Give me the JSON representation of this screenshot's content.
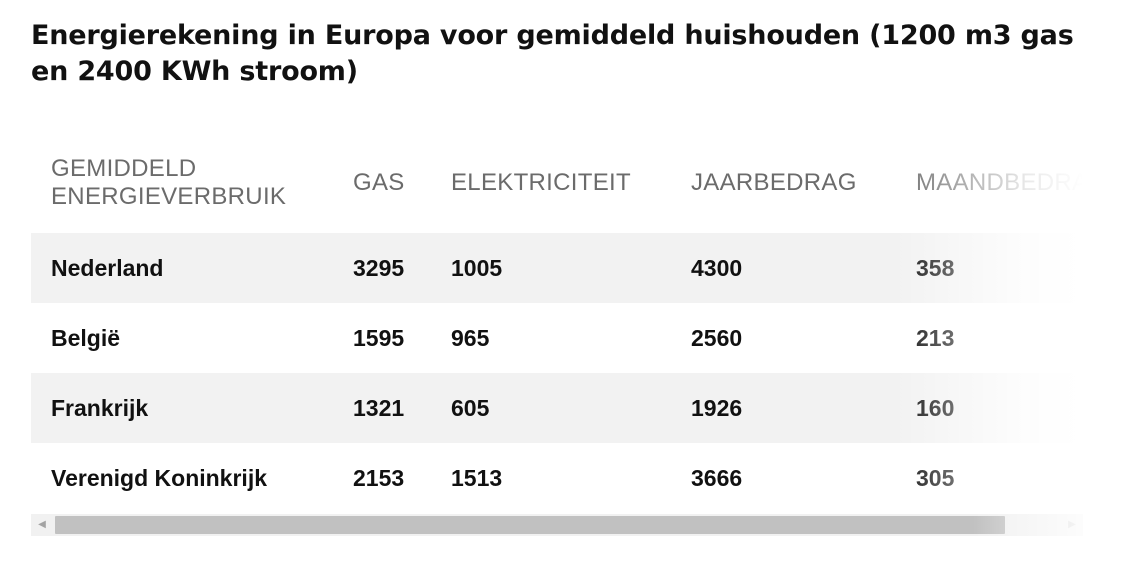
{
  "title": "Energierekening in Europa voor gemiddeld huishouden (1200 m3 gas en 2400 KWh stroom)",
  "table": {
    "headers": [
      "GEMIDDELD ENERGIEVERBRUIK",
      "GAS",
      "ELEKTRICITEIT",
      "JAARBEDRAG",
      "MAANDBEDRAG"
    ],
    "rows": [
      [
        "Nederland",
        "3295",
        "1005",
        "4300",
        "358"
      ],
      [
        "België",
        "1595",
        "965",
        "2560",
        "213"
      ],
      [
        "Frankrijk",
        "1321",
        "605",
        "1926",
        "160"
      ],
      [
        "Verenigd Koninkrijk",
        "2153",
        "1513",
        "3666",
        "305"
      ]
    ]
  },
  "scrollbar": {
    "left_arrow_icon": "chevron-left-icon",
    "right_arrow_icon": "chevron-right-icon",
    "thumb_fraction": 0.9
  },
  "colors": {
    "row_shade": "#f2f2f2",
    "header_text": "#6b6b6b",
    "body_text": "#111111"
  }
}
